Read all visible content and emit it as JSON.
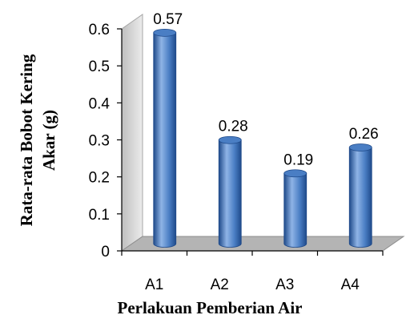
{
  "chart_data": {
    "type": "bar",
    "categories": [
      "A1",
      "A2",
      "A3",
      "A4"
    ],
    "values": [
      0.57,
      0.28,
      0.19,
      0.26
    ],
    "data_labels": [
      "0.57",
      "0.28",
      "0.19",
      "0.26"
    ],
    "ylim": [
      0,
      0.6
    ],
    "yticks": [
      0,
      0.1,
      0.2,
      0.3,
      0.4,
      0.5,
      0.6
    ],
    "ytick_labels": [
      "0",
      "0.1",
      "0.2",
      "0.3",
      "0.4",
      "0.5",
      "0.6"
    ],
    "xlabel": "Perlakuan Pemberian Air",
    "ylabel_line1": "Rata-rata Bobot  Kering",
    "ylabel_line2": "Akar (g)",
    "grid": false,
    "legend": "none",
    "style": "3d-cylinder",
    "colors": {
      "bar": "#4a7ec4",
      "bar_dark": "#1f4a8a",
      "bar_light": "#8fb4e6",
      "floor": "#b4b4b4",
      "wall": "#d9d9d9"
    }
  }
}
